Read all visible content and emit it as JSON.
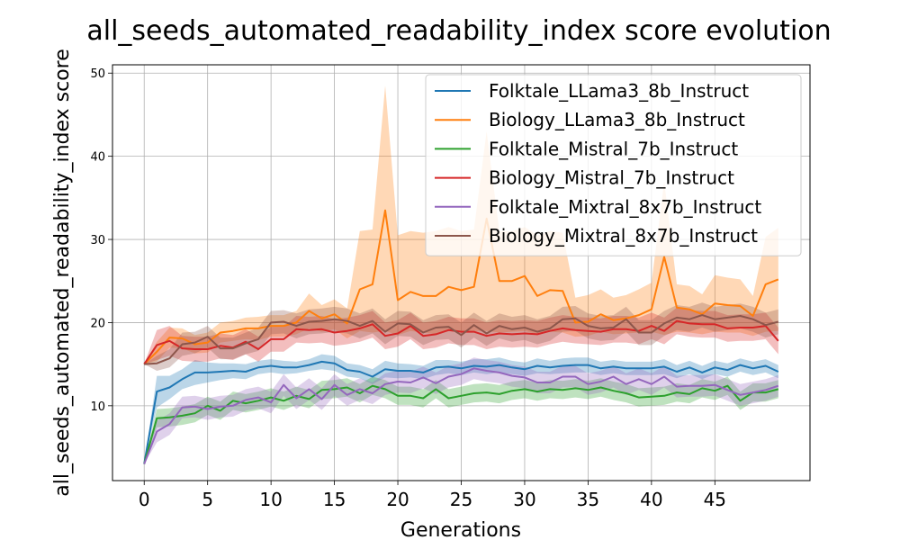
{
  "chart_data": {
    "type": "line",
    "title": "all_seeds_automated_readability_index score evolution",
    "xlabel": "Generations",
    "ylabel": "all_seeds_automated_readability_index score",
    "xlim": [
      -2.5,
      52.5
    ],
    "ylim": [
      1,
      51
    ],
    "xticks": [
      0,
      5,
      10,
      15,
      20,
      25,
      30,
      35,
      40,
      45
    ],
    "yticks": [
      10,
      20,
      30,
      40,
      50
    ],
    "grid": true,
    "legend_position": "top-right",
    "x": [
      0,
      1,
      2,
      3,
      4,
      5,
      6,
      7,
      8,
      9,
      10,
      11,
      12,
      13,
      14,
      15,
      16,
      17,
      18,
      19,
      20,
      21,
      22,
      23,
      24,
      25,
      26,
      27,
      28,
      29,
      30,
      31,
      32,
      33,
      34,
      35,
      36,
      37,
      38,
      39,
      40,
      41,
      42,
      43,
      44,
      45,
      46,
      47,
      48,
      49,
      50
    ],
    "series": [
      {
        "name": "Folktale_LLama3_8b_Instruct",
        "color": "#1f77b4",
        "values": [
          3.0,
          11.7,
          12.2,
          13.2,
          14.0,
          14.0,
          14.1,
          14.2,
          14.1,
          14.6,
          14.8,
          14.6,
          14.6,
          14.9,
          15.3,
          15.1,
          14.3,
          14.1,
          13.5,
          14.4,
          14.2,
          14.2,
          14.0,
          14.6,
          14.7,
          14.5,
          14.8,
          14.7,
          14.9,
          14.6,
          14.4,
          14.8,
          14.6,
          14.8,
          14.9,
          14.9,
          14.5,
          14.7,
          14.5,
          14.5,
          14.5,
          14.7,
          14.1,
          14.6,
          14.0,
          14.6,
          14.3,
          14.9,
          14.5,
          14.8,
          14.1
        ],
        "lower": [
          3.0,
          9.8,
          10.8,
          12.0,
          12.5,
          12.8,
          13.1,
          13.3,
          13.2,
          13.8,
          14.0,
          13.8,
          13.9,
          14.2,
          14.4,
          14.2,
          13.5,
          13.3,
          12.6,
          13.4,
          13.3,
          13.4,
          13.2,
          13.7,
          13.9,
          13.7,
          14.0,
          13.8,
          14.0,
          13.8,
          13.6,
          13.9,
          13.8,
          13.9,
          14.0,
          14.0,
          13.7,
          13.9,
          13.7,
          13.7,
          13.7,
          13.8,
          13.3,
          13.8,
          13.2,
          13.8,
          13.5,
          14.1,
          13.7,
          14.0,
          13.3
        ],
        "upper": [
          3.0,
          13.6,
          13.6,
          14.4,
          15.5,
          15.2,
          15.1,
          15.1,
          15.0,
          15.4,
          15.6,
          15.4,
          15.3,
          15.6,
          16.2,
          16.0,
          15.1,
          14.9,
          14.4,
          15.4,
          15.1,
          15.0,
          14.8,
          15.5,
          15.5,
          15.3,
          15.6,
          15.6,
          15.8,
          15.4,
          15.2,
          15.7,
          15.4,
          15.7,
          15.8,
          15.8,
          15.3,
          15.5,
          15.3,
          15.3,
          15.3,
          15.6,
          14.9,
          15.4,
          14.8,
          15.4,
          15.1,
          15.7,
          15.3,
          15.6,
          14.9
        ]
      },
      {
        "name": "Biology_LLama3_8b_Instruct",
        "color": "#ff7f0e",
        "values": [
          15.0,
          16.5,
          18.2,
          18.1,
          17.4,
          17.6,
          18.8,
          19.0,
          19.3,
          19.3,
          19.6,
          19.6,
          20.0,
          21.4,
          20.5,
          21.0,
          19.9,
          24.0,
          24.6,
          33.5,
          22.7,
          23.7,
          23.2,
          23.2,
          24.3,
          23.9,
          24.3,
          32.5,
          25.0,
          25.0,
          25.6,
          23.2,
          23.9,
          23.8,
          20.0,
          20.1,
          21.0,
          20.3,
          20.5,
          20.9,
          21.6,
          27.9,
          21.8,
          21.6,
          21.0,
          22.3,
          22.1,
          22.0,
          20.8,
          24.6,
          25.2
        ],
        "lower": [
          15.0,
          15.3,
          17.0,
          16.9,
          16.3,
          16.4,
          17.6,
          17.8,
          18.0,
          17.9,
          18.3,
          18.3,
          18.6,
          19.3,
          18.9,
          19.2,
          18.1,
          19.0,
          18.8,
          19.0,
          18.5,
          19.0,
          18.8,
          18.6,
          19.0,
          18.8,
          19.0,
          19.0,
          18.8,
          18.9,
          19.0,
          18.6,
          18.9,
          18.8,
          18.3,
          18.4,
          18.9,
          18.6,
          18.7,
          18.8,
          18.9,
          18.5,
          18.9,
          18.8,
          18.6,
          18.9,
          18.8,
          18.8,
          18.4,
          18.9,
          19.0
        ],
        "upper": [
          15.0,
          17.7,
          19.4,
          19.3,
          18.5,
          18.8,
          20.0,
          20.2,
          20.6,
          20.7,
          20.9,
          20.9,
          21.4,
          23.5,
          22.1,
          22.8,
          21.7,
          31.0,
          31.2,
          48.5,
          30.5,
          31.0,
          30.8,
          31.0,
          31.5,
          31.0,
          31.2,
          43.0,
          31.0,
          31.0,
          31.5,
          30.5,
          31.0,
          30.8,
          23.0,
          23.3,
          24.0,
          23.0,
          23.3,
          24.0,
          24.8,
          37.0,
          24.6,
          24.4,
          23.4,
          25.7,
          25.4,
          25.2,
          23.2,
          30.3,
          31.4
        ]
      },
      {
        "name": "Folktale_Mistral_7b_Instruct",
        "color": "#2ca02c",
        "values": [
          3.0,
          8.5,
          8.6,
          8.8,
          9.1,
          10.0,
          9.4,
          10.6,
          10.3,
          10.6,
          11.0,
          10.6,
          11.2,
          10.8,
          11.9,
          12.0,
          12.2,
          11.5,
          12.4,
          12.0,
          11.2,
          11.2,
          10.9,
          12.0,
          10.9,
          11.2,
          11.5,
          11.6,
          11.4,
          11.8,
          12.0,
          11.7,
          12.0,
          11.9,
          12.1,
          11.9,
          12.2,
          11.8,
          11.5,
          11.0,
          11.1,
          11.2,
          11.6,
          11.4,
          12.1,
          11.8,
          12.4,
          10.6,
          11.6,
          11.6,
          12.0
        ],
        "lower": [
          3.0,
          7.4,
          7.5,
          7.7,
          8.0,
          8.9,
          8.3,
          9.5,
          9.2,
          9.5,
          9.9,
          9.5,
          10.1,
          9.7,
          10.8,
          10.9,
          11.1,
          10.4,
          11.3,
          10.9,
          10.1,
          10.1,
          9.8,
          10.9,
          9.8,
          10.1,
          10.4,
          10.5,
          10.3,
          10.7,
          10.9,
          10.6,
          10.9,
          10.8,
          11.0,
          10.8,
          11.1,
          10.7,
          10.4,
          9.9,
          10.0,
          10.1,
          10.5,
          10.3,
          11.0,
          10.7,
          11.3,
          9.5,
          10.5,
          10.5,
          10.9
        ],
        "upper": [
          3.0,
          9.6,
          9.7,
          9.9,
          10.2,
          11.1,
          10.5,
          11.7,
          11.4,
          11.7,
          12.1,
          11.7,
          12.3,
          11.9,
          13.0,
          13.1,
          13.3,
          12.6,
          13.5,
          13.1,
          12.3,
          12.3,
          12.0,
          13.1,
          12.0,
          12.3,
          12.6,
          12.7,
          12.5,
          12.9,
          13.1,
          12.8,
          13.1,
          13.0,
          13.2,
          13.0,
          13.3,
          12.9,
          12.6,
          12.1,
          12.2,
          12.3,
          12.7,
          12.5,
          13.2,
          12.9,
          13.5,
          11.7,
          12.7,
          12.7,
          13.1
        ]
      },
      {
        "name": "Biology_Mistral_7b_Instruct",
        "color": "#d62728",
        "values": [
          15.0,
          17.3,
          17.8,
          16.9,
          16.8,
          16.8,
          17.2,
          17.0,
          17.7,
          16.8,
          18.0,
          18.0,
          19.2,
          19.1,
          19.2,
          18.8,
          19.0,
          19.3,
          19.8,
          18.4,
          18.7,
          19.6,
          18.4,
          18.6,
          19.1,
          18.9,
          18.9,
          18.4,
          18.7,
          18.6,
          18.7,
          18.6,
          19.0,
          19.3,
          19.1,
          19.0,
          18.9,
          19.2,
          19.2,
          19.0,
          19.6,
          19.0,
          20.2,
          19.9,
          19.8,
          19.8,
          19.3,
          19.4,
          19.4,
          19.6,
          17.8
        ],
        "lower": [
          15.0,
          15.5,
          16.0,
          15.4,
          15.3,
          15.3,
          15.7,
          15.5,
          16.2,
          15.3,
          16.5,
          16.5,
          17.6,
          17.5,
          17.6,
          17.2,
          17.4,
          17.7,
          18.2,
          16.8,
          17.1,
          18.0,
          16.8,
          17.0,
          17.5,
          17.3,
          17.3,
          16.8,
          17.1,
          17.0,
          17.1,
          17.0,
          17.4,
          17.7,
          17.5,
          17.4,
          17.3,
          17.6,
          17.6,
          17.4,
          18.0,
          17.4,
          18.6,
          18.3,
          18.2,
          18.2,
          17.7,
          17.8,
          17.8,
          18.0,
          16.2
        ],
        "upper": [
          15.0,
          19.1,
          19.6,
          18.4,
          18.3,
          18.3,
          18.7,
          18.5,
          19.2,
          18.3,
          19.5,
          19.5,
          20.8,
          20.7,
          20.8,
          20.4,
          20.6,
          20.9,
          21.4,
          20.0,
          20.3,
          21.2,
          20.0,
          20.2,
          20.7,
          20.5,
          20.5,
          20.0,
          20.3,
          20.2,
          20.3,
          20.2,
          20.6,
          20.9,
          20.7,
          20.6,
          20.5,
          20.8,
          20.8,
          20.6,
          21.2,
          20.6,
          21.8,
          21.5,
          21.4,
          21.4,
          20.9,
          21.0,
          21.0,
          21.2,
          19.4
        ]
      },
      {
        "name": "Folktale_Mixtral_8x7b_Instruct",
        "color": "#9467bd",
        "values": [
          3.0,
          6.9,
          7.8,
          9.8,
          9.9,
          9.6,
          9.9,
          10.0,
          10.7,
          11.0,
          10.4,
          12.5,
          10.9,
          12.0,
          10.8,
          12.5,
          11.3,
          12.0,
          11.5,
          12.6,
          12.9,
          12.8,
          13.4,
          12.7,
          13.5,
          13.8,
          14.5,
          14.2,
          14.0,
          13.6,
          13.4,
          12.8,
          12.8,
          13.5,
          13.5,
          12.6,
          12.9,
          13.5,
          12.6,
          13.2,
          12.6,
          13.5,
          12.3,
          12.4,
          12.4,
          12.5,
          11.9,
          11.3,
          11.6,
          11.9,
          12.4
        ],
        "lower": [
          3.0,
          5.6,
          6.5,
          8.5,
          8.6,
          8.3,
          8.6,
          8.7,
          9.4,
          9.7,
          9.1,
          11.2,
          9.6,
          10.7,
          9.5,
          11.2,
          10.0,
          10.7,
          10.2,
          11.3,
          11.6,
          11.5,
          12.1,
          11.4,
          12.2,
          12.5,
          13.2,
          12.9,
          12.7,
          12.3,
          12.1,
          11.5,
          11.5,
          12.2,
          12.2,
          11.3,
          11.6,
          12.2,
          11.3,
          11.9,
          11.3,
          12.2,
          11.0,
          11.1,
          11.1,
          11.2,
          10.6,
          10.0,
          10.3,
          10.6,
          11.1
        ],
        "upper": [
          3.0,
          8.2,
          9.1,
          11.1,
          11.2,
          10.9,
          11.2,
          11.3,
          12.0,
          12.3,
          11.7,
          13.8,
          12.2,
          13.3,
          12.1,
          13.8,
          12.6,
          13.3,
          12.8,
          13.9,
          14.2,
          14.1,
          14.7,
          14.0,
          14.8,
          15.1,
          15.8,
          15.5,
          15.3,
          14.9,
          14.7,
          14.1,
          14.1,
          14.8,
          14.8,
          13.9,
          14.2,
          14.8,
          13.9,
          14.5,
          13.9,
          14.8,
          13.6,
          13.7,
          13.7,
          13.8,
          13.2,
          12.6,
          12.9,
          13.2,
          13.7
        ]
      },
      {
        "name": "Biology_Mixtral_8x7b_Instruct",
        "color": "#8c564b",
        "values": [
          15.0,
          15.1,
          15.7,
          17.4,
          17.6,
          18.3,
          16.9,
          16.9,
          17.5,
          18.0,
          20.0,
          20.1,
          19.6,
          20.1,
          20.2,
          20.4,
          20.2,
          19.6,
          20.2,
          18.9,
          19.9,
          19.8,
          18.8,
          19.4,
          19.5,
          18.5,
          19.7,
          18.7,
          19.6,
          19.2,
          19.4,
          18.9,
          19.3,
          20.4,
          20.5,
          19.6,
          19.3,
          19.4,
          20.4,
          18.8,
          18.8,
          19.9,
          20.6,
          20.4,
          20.9,
          20.4,
          20.6,
          20.8,
          20.4,
          19.7,
          20.1
        ],
        "lower": [
          15.0,
          14.2,
          14.6,
          16.0,
          16.3,
          17.0,
          15.6,
          15.6,
          16.2,
          16.6,
          18.6,
          18.7,
          18.1,
          18.6,
          18.7,
          18.9,
          18.7,
          18.1,
          18.7,
          17.4,
          18.4,
          18.3,
          17.3,
          17.9,
          18.0,
          17.0,
          18.2,
          17.2,
          18.1,
          17.7,
          17.9,
          17.4,
          17.8,
          18.9,
          19.0,
          18.1,
          17.8,
          17.9,
          18.9,
          17.3,
          17.3,
          18.4,
          19.1,
          18.9,
          19.4,
          18.9,
          19.1,
          19.3,
          18.9,
          18.2,
          18.6
        ],
        "upper": [
          15.0,
          16.0,
          16.8,
          18.8,
          18.9,
          19.6,
          18.2,
          18.2,
          18.8,
          19.4,
          21.4,
          21.5,
          21.1,
          21.6,
          21.7,
          21.9,
          21.7,
          21.1,
          21.7,
          20.4,
          21.4,
          21.3,
          20.3,
          20.9,
          21.0,
          20.0,
          21.2,
          20.2,
          21.1,
          20.7,
          20.9,
          20.4,
          20.8,
          21.9,
          22.0,
          21.1,
          20.8,
          20.9,
          21.9,
          20.3,
          20.3,
          21.4,
          22.1,
          21.9,
          22.4,
          21.9,
          22.1,
          22.3,
          21.9,
          21.2,
          21.6
        ]
      }
    ]
  }
}
